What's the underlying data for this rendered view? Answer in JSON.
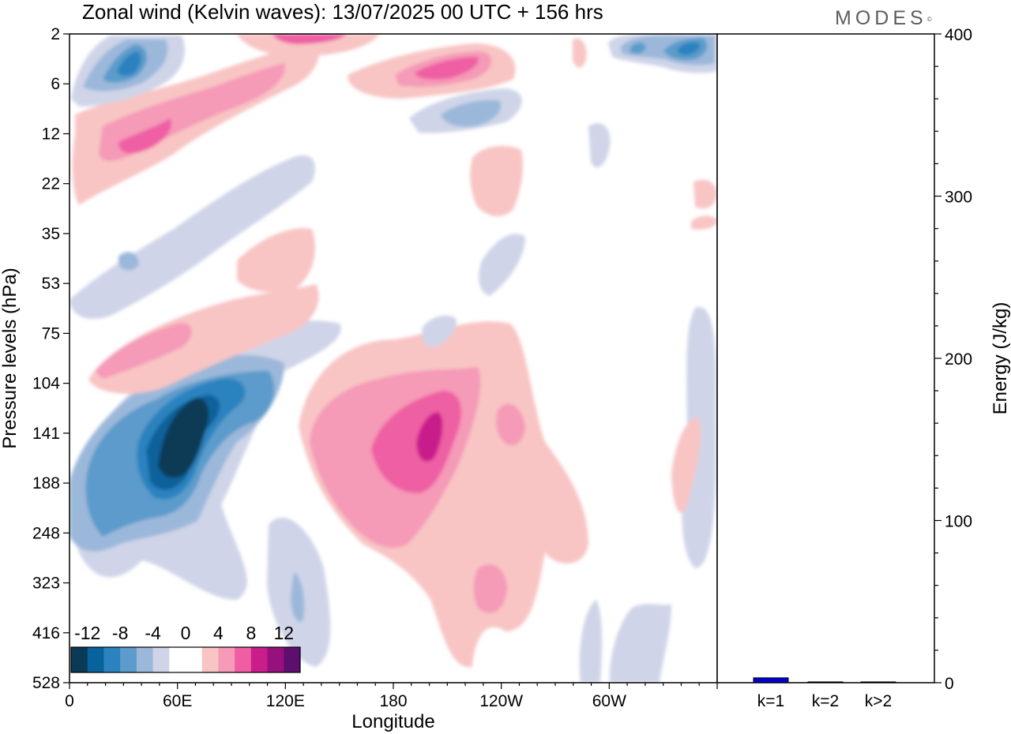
{
  "title": "Zonal wind (Kelvin waves):  13/07/2025  00 UTC  + 156 hrs",
  "brand": "MODES",
  "brand_mark": "©",
  "chart_data": [
    {
      "type": "heatmap",
      "xlabel": "Longitude",
      "ylabel": "Pressure levels (hPa)",
      "x_ticks": [
        "0",
        "60E",
        "120E",
        "180",
        "120W",
        "60W"
      ],
      "y_ticks": [
        "2",
        "6",
        "12",
        "22",
        "35",
        "53",
        "75",
        "104",
        "141",
        "188",
        "248",
        "323",
        "416",
        "528"
      ],
      "colorbar": {
        "labels": [
          "-12",
          "-8",
          "-4",
          "0",
          "4",
          "8",
          "12"
        ],
        "colors": [
          "#0a3a56",
          "#08629b",
          "#2a82bf",
          "#5c9bcb",
          "#9bb8da",
          "#cfd4e8",
          "#ffffff",
          "#ffffff",
          "#f8c5c4",
          "#f59ab7",
          "#ef5ea3",
          "#c91d8b",
          "#96117e",
          "#5e0e6e"
        ]
      },
      "features": [
        {
          "sign": "negative",
          "value": -14,
          "lon": 60,
          "level": 141
        },
        {
          "sign": "negative",
          "value": -8,
          "lon": 20,
          "level": 160
        },
        {
          "sign": "negative",
          "value": -8,
          "lon": 30,
          "level": 4
        },
        {
          "sign": "negative",
          "value": -10,
          "lon": 345,
          "level": 3
        },
        {
          "sign": "positive",
          "value": 9,
          "lon": 200,
          "level": 141
        },
        {
          "sign": "positive",
          "value": 8,
          "lon": 215,
          "level": 5
        },
        {
          "sign": "positive",
          "value": 7,
          "lon": 55,
          "level": 10
        },
        {
          "sign": "positive",
          "value": 4,
          "lon": 240,
          "level": 300
        }
      ]
    },
    {
      "type": "bar",
      "ylabel": "Energy (J/kg)",
      "categories": [
        "k=1",
        "k=2",
        "k>2"
      ],
      "values": [
        3,
        0.5,
        0.5
      ],
      "ylim": [
        0,
        400
      ],
      "y_ticks": [
        "0",
        "100",
        "200",
        "300",
        "400"
      ],
      "bar_color": "#0000cc"
    }
  ]
}
